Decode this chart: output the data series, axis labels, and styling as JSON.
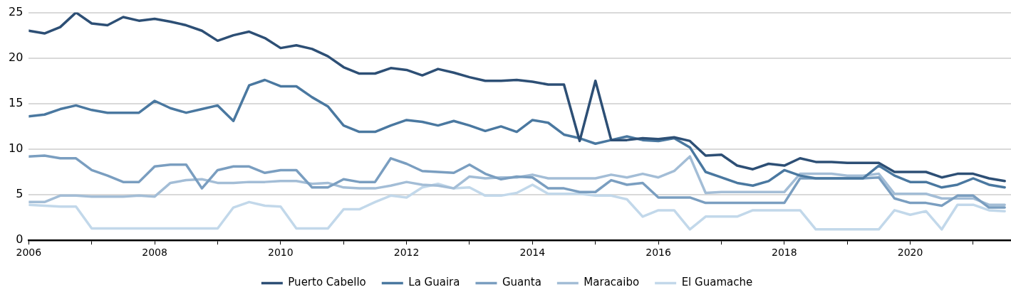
{
  "chart_data": {
    "type": "line",
    "x": [
      2006,
      2006.25,
      2006.5,
      2006.75,
      2007,
      2007.25,
      2007.5,
      2007.75,
      2008,
      2008.25,
      2008.5,
      2008.75,
      2009,
      2009.25,
      2009.5,
      2009.75,
      2010,
      2010.25,
      2010.5,
      2010.75,
      2011,
      2011.25,
      2011.5,
      2011.75,
      2012,
      2012.25,
      2012.5,
      2012.75,
      2013,
      2013.25,
      2013.5,
      2013.75,
      2014,
      2014.25,
      2014.5,
      2014.75,
      2015,
      2015.25,
      2015.5,
      2015.75,
      2016,
      2016.25,
      2016.5,
      2016.75,
      2017,
      2017.25,
      2017.5,
      2017.75,
      2018,
      2018.25,
      2018.5,
      2018.75,
      2019,
      2019.25,
      2019.5,
      2019.75,
      2020,
      2020.25,
      2020.5,
      2020.75,
      2021,
      2021.25,
      2021.5
    ],
    "series": [
      {
        "name": "Puerto Cabello",
        "color": "#2d4f75",
        "values": [
          23.0,
          22.7,
          23.4,
          25.0,
          23.8,
          23.6,
          24.5,
          24.1,
          24.3,
          24.0,
          23.6,
          23.0,
          21.9,
          22.5,
          22.9,
          22.2,
          21.1,
          21.4,
          21.0,
          20.2,
          19.0,
          18.3,
          18.3,
          18.9,
          18.7,
          18.1,
          18.8,
          18.4,
          17.9,
          17.5,
          17.5,
          17.6,
          17.4,
          17.1,
          17.1,
          10.9,
          17.5,
          11.0,
          11.0,
          11.2,
          11.1,
          11.3,
          10.9,
          9.3,
          9.4,
          8.2,
          7.8,
          8.4,
          8.2,
          9.0,
          8.6,
          8.6,
          8.5,
          8.5,
          8.5,
          7.5,
          7.5,
          7.5,
          6.9,
          7.3,
          7.3,
          6.8,
          6.5
        ]
      },
      {
        "name": "La Guaira",
        "color": "#4a78a0",
        "values": [
          13.6,
          13.8,
          14.4,
          14.8,
          14.3,
          14.0,
          14.0,
          14.0,
          15.3,
          14.5,
          14.0,
          14.4,
          14.8,
          13.1,
          17.0,
          17.6,
          16.9,
          16.9,
          15.7,
          14.7,
          12.6,
          11.9,
          11.9,
          12.6,
          13.2,
          13.0,
          12.6,
          13.1,
          12.6,
          12.0,
          12.5,
          11.9,
          13.2,
          12.9,
          11.6,
          11.2,
          10.6,
          11.0,
          11.4,
          11.0,
          10.9,
          11.2,
          10.2,
          7.5,
          6.9,
          6.3,
          6.0,
          6.5,
          7.7,
          7.1,
          6.8,
          6.8,
          6.8,
          6.8,
          8.2,
          7.1,
          6.4,
          6.4,
          5.8,
          6.1,
          6.8,
          6.1,
          5.8
        ]
      },
      {
        "name": "Guanta",
        "color": "#7a9ec0",
        "values": [
          9.2,
          9.3,
          9.0,
          9.0,
          7.7,
          7.1,
          6.4,
          6.4,
          8.1,
          8.3,
          8.3,
          5.7,
          7.7,
          8.1,
          8.1,
          7.4,
          7.7,
          7.7,
          5.8,
          5.8,
          6.7,
          6.4,
          6.4,
          9.0,
          8.4,
          7.6,
          7.5,
          7.4,
          8.3,
          7.3,
          6.7,
          7.0,
          6.9,
          5.7,
          5.7,
          5.3,
          5.3,
          6.6,
          6.1,
          6.3,
          4.7,
          4.7,
          4.7,
          4.1,
          4.1,
          4.1,
          4.1,
          4.1,
          4.1,
          6.8,
          6.8,
          6.8,
          6.8,
          6.8,
          6.9,
          4.6,
          4.1,
          4.1,
          3.8,
          4.9,
          4.9,
          3.6,
          3.6
        ]
      },
      {
        "name": "Maracaibo",
        "color": "#a3bdd6",
        "values": [
          4.2,
          4.2,
          4.9,
          4.9,
          4.8,
          4.8,
          4.8,
          4.9,
          4.8,
          6.3,
          6.6,
          6.7,
          6.3,
          6.3,
          6.4,
          6.4,
          6.5,
          6.5,
          6.2,
          6.3,
          5.8,
          5.7,
          5.7,
          6.0,
          6.4,
          6.1,
          6.0,
          5.7,
          7.0,
          6.8,
          6.9,
          6.9,
          7.2,
          6.8,
          6.8,
          6.8,
          6.8,
          7.2,
          6.9,
          7.3,
          6.9,
          7.6,
          9.2,
          5.2,
          5.3,
          5.3,
          5.3,
          5.3,
          5.3,
          7.3,
          7.3,
          7.3,
          7.1,
          7.1,
          7.3,
          5.1,
          5.1,
          5.1,
          4.6,
          4.6,
          4.6,
          3.9,
          3.9
        ]
      },
      {
        "name": "El Guamache",
        "color": "#c2d8ea",
        "values": [
          3.9,
          3.8,
          3.7,
          3.7,
          1.3,
          1.3,
          1.3,
          1.3,
          1.3,
          1.3,
          1.3,
          1.3,
          1.3,
          3.6,
          4.2,
          3.8,
          3.7,
          1.3,
          1.3,
          1.3,
          3.4,
          3.4,
          4.2,
          4.9,
          4.7,
          5.8,
          6.2,
          5.7,
          5.8,
          4.9,
          4.9,
          5.2,
          6.1,
          5.1,
          5.1,
          5.1,
          4.9,
          4.9,
          4.5,
          2.6,
          3.3,
          3.3,
          1.2,
          2.6,
          2.6,
          2.6,
          3.3,
          3.3,
          3.3,
          3.3,
          1.2,
          1.2,
          1.2,
          1.2,
          1.2,
          3.3,
          2.8,
          3.2,
          1.2,
          3.9,
          3.9,
          3.3,
          3.2
        ]
      }
    ],
    "xlim": [
      2006,
      2021.6
    ],
    "xticks": [
      2006,
      {
        "value": 2007,
        "label": null
      },
      2008,
      {
        "value": 2009,
        "label": null
      },
      2010,
      {
        "value": 2011,
        "label": null
      },
      2012,
      {
        "value": 2013,
        "label": null
      },
      2014,
      {
        "value": 2015,
        "label": null
      },
      2016,
      {
        "value": 2017,
        "label": null
      },
      2018,
      {
        "value": 2019,
        "label": null
      },
      2020,
      {
        "value": 2021,
        "label": null
      }
    ],
    "ylim": [
      0,
      25
    ],
    "yticks": [
      0,
      5,
      10,
      15,
      20,
      25
    ],
    "grid": "y",
    "legend": "bottom",
    "marker": "none",
    "line_style": "solid"
  }
}
